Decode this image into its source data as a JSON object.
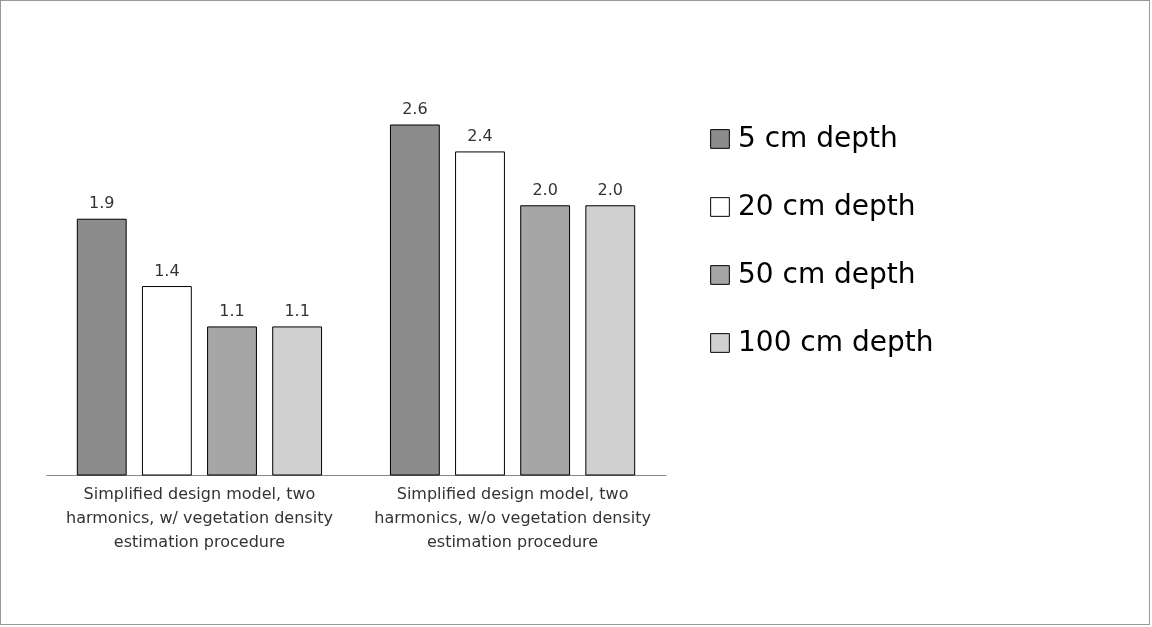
{
  "chart_data": {
    "type": "bar",
    "categories": [
      "Simplified design model, two harmonics, w/ vegetation density estimation procedure",
      "Simplified design model, two harmonics, w/o vegetation density estimation procedure"
    ],
    "series": [
      {
        "name": "5 cm depth",
        "color": "#8c8c8c",
        "values": [
          1.9,
          2.6
        ],
        "value_labels": [
          "1.9",
          "2.6"
        ]
      },
      {
        "name": "20 cm depth",
        "color": "#ffffff",
        "values": [
          1.4,
          2.4
        ],
        "value_labels": [
          "1.4",
          "2.4"
        ]
      },
      {
        "name": "50 cm depth",
        "color": "#a6a6a6",
        "values": [
          1.1,
          2.0
        ],
        "value_labels": [
          "1.1",
          "2.0"
        ]
      },
      {
        "name": "100 cm depth",
        "color": "#d0d0d0",
        "values": [
          1.1,
          2.0
        ],
        "value_labels": [
          "1.1",
          "2.0"
        ]
      }
    ],
    "legend": "right",
    "grid": false
  }
}
